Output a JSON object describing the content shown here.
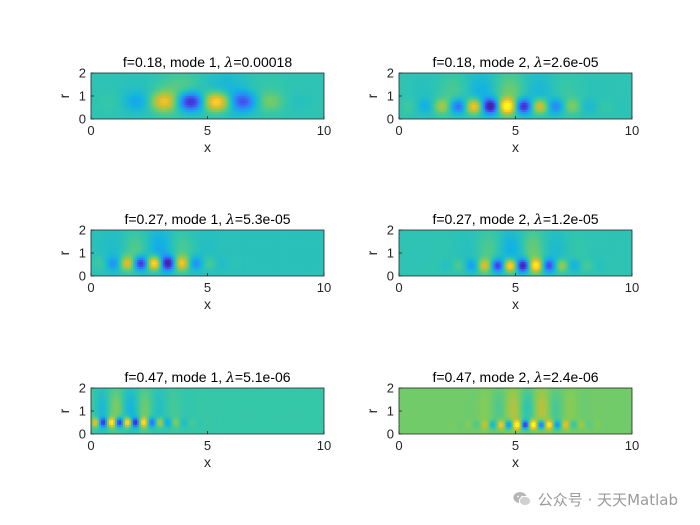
{
  "chart_data": [
    {
      "type": "heatmap",
      "title": "f=0.18, mode 1, λ=0.00018",
      "title_prefix": "f=0.18, mode 1, ",
      "lambda_label": "λ",
      "lambda_value": "=0.00018",
      "xlabel": "x",
      "ylabel": "r",
      "xlim": [
        0,
        10
      ],
      "ylim": [
        0,
        2
      ],
      "xticks": [
        "0",
        "5",
        "10"
      ],
      "yticks": [
        "0",
        "1",
        "2"
      ],
      "wave": {
        "k": 2.6,
        "center": 4.8,
        "spread": 2.4,
        "r0": 0.75,
        "rw": 0.42,
        "amp": 1.0,
        "bg": 0.05
      }
    },
    {
      "type": "heatmap",
      "title": "f=0.18, mode 2, λ=2.6e-05",
      "title_prefix": "f=0.18, mode 2, ",
      "lambda_label": "λ",
      "lambda_value": "=2.6e-05",
      "xlabel": "x",
      "ylabel": "r",
      "xlim": [
        0,
        10
      ],
      "ylim": [
        0,
        2
      ],
      "xticks": [
        "0",
        "5",
        "10"
      ],
      "yticks": [
        "0",
        "1",
        "2"
      ],
      "wave": {
        "k": 4.4,
        "center": 4.4,
        "spread": 2.6,
        "r0": 0.55,
        "rw": 0.32,
        "amp": 1.0,
        "bg": 0.05
      }
    },
    {
      "type": "heatmap",
      "title": "f=0.27, mode 1, λ=5.3e-05",
      "title_prefix": "f=0.27, mode 1, ",
      "lambda_label": "λ",
      "lambda_value": "=5.3e-05",
      "xlabel": "x",
      "ylabel": "r",
      "xlim": [
        0,
        10
      ],
      "ylim": [
        0,
        2
      ],
      "xticks": [
        "0",
        "5",
        "10"
      ],
      "yticks": [
        "0",
        "1",
        "2"
      ],
      "wave": {
        "k": 5.2,
        "center": 2.8,
        "spread": 1.7,
        "r0": 0.55,
        "rw": 0.3,
        "amp": 1.0,
        "bg": 0.02
      }
    },
    {
      "type": "heatmap",
      "title": "f=0.27, mode 2, λ=1.2e-05",
      "title_prefix": "f=0.27, mode 2, ",
      "lambda_label": "λ",
      "lambda_value": "=1.2e-05",
      "xlabel": "x",
      "ylabel": "r",
      "xlim": [
        0,
        10
      ],
      "ylim": [
        0,
        2
      ],
      "xticks": [
        "0",
        "5",
        "10"
      ],
      "yticks": [
        "0",
        "1",
        "2"
      ],
      "wave": {
        "k": 5.6,
        "center": 5.2,
        "spread": 1.9,
        "r0": 0.45,
        "rw": 0.28,
        "amp": 1.0,
        "bg": 0.05
      }
    },
    {
      "type": "heatmap",
      "title": "f=0.47, mode 1, λ=5.1e-06",
      "title_prefix": "f=0.47, mode 1, ",
      "lambda_label": "λ",
      "lambda_value": "=5.1e-06",
      "xlabel": "x",
      "ylabel": "r",
      "xlim": [
        0,
        10
      ],
      "ylim": [
        0,
        2
      ],
      "xticks": [
        "0",
        "5",
        "10"
      ],
      "yticks": [
        "0",
        "1",
        "2"
      ],
      "wave": {
        "k": 9.0,
        "center": 1.4,
        "spread": 1.8,
        "r0": 0.5,
        "rw": 0.2,
        "amp": 1.0,
        "bg": 0.1
      }
    },
    {
      "type": "heatmap",
      "title": "f=0.47, mode 2, λ=2.4e-06",
      "title_prefix": "f=0.47, mode 2, ",
      "lambda_label": "λ",
      "lambda_value": "=2.4e-06",
      "xlabel": "x",
      "ylabel": "r",
      "xlim": [
        0,
        10
      ],
      "ylim": [
        0,
        2
      ],
      "xticks": [
        "0",
        "5",
        "10"
      ],
      "yticks": [
        "0",
        "1",
        "2"
      ],
      "wave": {
        "k": 9.0,
        "center": 5.6,
        "spread": 1.6,
        "r0": 0.4,
        "rw": 0.18,
        "amp": 1.0,
        "bg": 0.3
      }
    }
  ],
  "colormap": [
    "#3e26a8",
    "#4744e8",
    "#2f84f9",
    "#13b4e1",
    "#35c7a8",
    "#81cc59",
    "#d8ba2f",
    "#fcd12b",
    "#f9fb0e"
  ],
  "watermark": {
    "text": "公众号 · 天天Matlab",
    "icon": "wechat-icon"
  }
}
